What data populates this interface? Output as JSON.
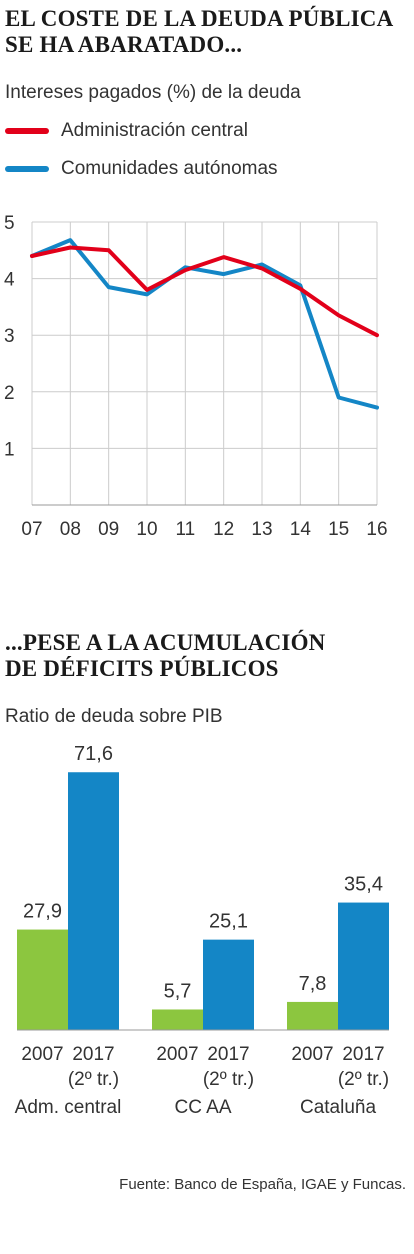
{
  "line_section": {
    "title_lines": [
      "EL COSTE DE LA DEUDA PÚBLICA",
      "SE HA ABARATADO..."
    ],
    "subtitle": "Intereses pagados (%) de la deuda"
  },
  "bar_section": {
    "title_lines": [
      "...PESE A LA ACUMULACIÓN",
      "DE DÉFICITS PÚBLICOS"
    ],
    "subtitle": "Ratio de deuda sobre PIB"
  },
  "source": "Fuente: Banco de España, IGAE y Funcas.",
  "colors": {
    "red": "#e2001a",
    "blue": "#1486c6",
    "green": "#8cc63f",
    "grid": "#cccccc"
  },
  "chart_data": [
    {
      "type": "line",
      "x": [
        "07",
        "08",
        "09",
        "10",
        "11",
        "12",
        "13",
        "14",
        "15",
        "16"
      ],
      "ylim": [
        0,
        5
      ],
      "yticks": [
        1,
        2,
        3,
        4,
        5
      ],
      "grid": true,
      "legend_position": "top-left",
      "series": [
        {
          "name": "Administración central",
          "color": "#e2001a",
          "values": [
            4.4,
            4.55,
            4.5,
            3.8,
            4.15,
            4.38,
            4.18,
            3.82,
            3.35,
            3.0
          ]
        },
        {
          "name": "Comunidades autónomas",
          "color": "#1486c6",
          "values": [
            4.4,
            4.68,
            3.85,
            3.72,
            4.2,
            4.08,
            4.25,
            3.88,
            1.9,
            1.72
          ]
        }
      ]
    },
    {
      "type": "bar",
      "ylim": [
        0,
        75
      ],
      "groups": [
        {
          "label": "Adm. central",
          "bars": [
            {
              "label": "2007",
              "sublabel": "",
              "value": 27.9,
              "display": "27,9",
              "color": "#8cc63f"
            },
            {
              "label": "2017",
              "sublabel": "(2º tr.)",
              "value": 71.6,
              "display": "71,6",
              "color": "#1486c6"
            }
          ]
        },
        {
          "label": "CC AA",
          "bars": [
            {
              "label": "2007",
              "sublabel": "",
              "value": 5.7,
              "display": "5,7",
              "color": "#8cc63f"
            },
            {
              "label": "2017",
              "sublabel": "(2º tr.)",
              "value": 25.1,
              "display": "25,1",
              "color": "#1486c6"
            }
          ]
        },
        {
          "label": "Cataluña",
          "bars": [
            {
              "label": "2007",
              "sublabel": "",
              "value": 7.8,
              "display": "7,8",
              "color": "#8cc63f"
            },
            {
              "label": "2017",
              "sublabel": "(2º tr.)",
              "value": 35.4,
              "display": "35,4",
              "color": "#1486c6"
            }
          ]
        }
      ]
    }
  ]
}
